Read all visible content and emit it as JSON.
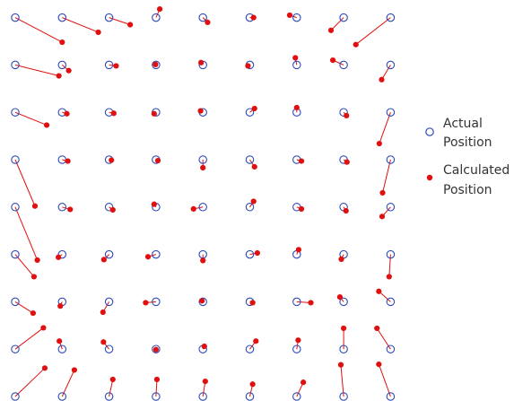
{
  "colors": {
    "actual": "#2f49b8",
    "calculated": "#e01010",
    "error_line": "#e01010"
  },
  "legend": {
    "actual": [
      "Actual",
      "Position"
    ],
    "calculated": [
      "Calculated",
      "Position"
    ]
  },
  "chart_data": {
    "type": "scatter",
    "title": "",
    "xlabel": "",
    "ylabel": "",
    "grid": false,
    "axes_visible": false,
    "legend_position": "right",
    "xlim": [
      -0.3,
      8.3
    ],
    "ylim": [
      -0.3,
      8.3
    ],
    "series": [
      {
        "name": "Actual Position",
        "marker": "open-circle",
        "rows": [
          {
            "y": 8,
            "x": [
              0,
              1,
              2,
              3,
              4,
              5,
              6,
              7,
              8
            ]
          },
          {
            "y": 7,
            "x": [
              0,
              1,
              2,
              3,
              4,
              5,
              6,
              7,
              8
            ]
          },
          {
            "y": 6,
            "x": [
              0,
              1,
              2,
              3,
              4,
              5,
              6,
              7,
              8
            ]
          },
          {
            "y": 5,
            "x": [
              0,
              1,
              2,
              3,
              4,
              5,
              6,
              7,
              8
            ]
          },
          {
            "y": 4,
            "x": [
              0,
              1,
              2,
              3,
              4,
              5,
              6,
              7,
              8
            ]
          },
          {
            "y": 3,
            "x": [
              0,
              1,
              2,
              3,
              4,
              5,
              6,
              7,
              8
            ]
          },
          {
            "y": 2,
            "x": [
              0,
              1,
              2,
              3,
              4,
              5,
              6,
              7,
              8
            ]
          },
          {
            "y": 1,
            "x": [
              0,
              1,
              2,
              3,
              4,
              5,
              6,
              7,
              8
            ]
          },
          {
            "y": 0,
            "x": [
              0,
              1,
              2,
              3,
              4,
              5,
              6,
              7,
              8
            ]
          }
        ]
      },
      {
        "name": "Calculated Position",
        "marker": "filled-dot",
        "points": [
          [
            [
              1.0,
              7.48
            ],
            [
              1.77,
              7.69
            ],
            [
              2.45,
              7.85
            ],
            [
              3.08,
              8.18
            ],
            [
              4.1,
              7.9
            ],
            [
              5.08,
              8.0
            ],
            [
              5.85,
              8.05
            ],
            [
              6.73,
              7.73
            ],
            [
              7.26,
              7.43
            ]
          ],
          [
            [
              0.93,
              6.77
            ],
            [
              1.14,
              6.88
            ],
            [
              2.15,
              6.98
            ],
            [
              2.99,
              7.01
            ],
            [
              3.96,
              7.05
            ],
            [
              4.96,
              6.98
            ],
            [
              5.97,
              7.15
            ],
            [
              6.77,
              7.1
            ],
            [
              7.81,
              6.69
            ]
          ],
          [
            [
              0.67,
              5.73
            ],
            [
              1.1,
              5.97
            ],
            [
              2.1,
              5.98
            ],
            [
              2.96,
              5.97
            ],
            [
              3.95,
              6.03
            ],
            [
              5.1,
              6.08
            ],
            [
              6.0,
              6.1
            ],
            [
              7.06,
              5.93
            ],
            [
              7.76,
              5.34
            ]
          ],
          [
            [
              0.42,
              4.02
            ],
            [
              1.12,
              4.97
            ],
            [
              2.05,
              4.99
            ],
            [
              3.04,
              4.98
            ],
            [
              4.0,
              4.83
            ],
            [
              5.1,
              4.85
            ],
            [
              6.1,
              4.97
            ],
            [
              7.07,
              4.95
            ],
            [
              7.83,
              4.3
            ]
          ],
          [
            [
              0.47,
              2.88
            ],
            [
              1.17,
              3.95
            ],
            [
              2.08,
              3.94
            ],
            [
              2.96,
              4.06
            ],
            [
              3.8,
              3.96
            ],
            [
              5.08,
              4.12
            ],
            [
              6.1,
              3.96
            ],
            [
              7.05,
              3.92
            ],
            [
              7.82,
              3.8
            ]
          ],
          [
            [
              0.4,
              2.53
            ],
            [
              0.92,
              2.94
            ],
            [
              1.89,
              2.89
            ],
            [
              2.83,
              2.95
            ],
            [
              4.0,
              2.87
            ],
            [
              5.16,
              3.03
            ],
            [
              6.04,
              3.1
            ],
            [
              6.95,
              2.9
            ],
            [
              7.97,
              2.53
            ]
          ],
          [
            [
              0.38,
              1.76
            ],
            [
              0.96,
              1.91
            ],
            [
              1.87,
              1.78
            ],
            [
              2.78,
              1.98
            ],
            [
              3.98,
              2.02
            ],
            [
              5.06,
              1.98
            ],
            [
              6.3,
              1.98
            ],
            [
              6.92,
              2.1
            ],
            [
              7.75,
              2.22
            ]
          ],
          [
            [
              0.6,
              1.45
            ],
            [
              0.94,
              1.17
            ],
            [
              1.88,
              1.15
            ],
            [
              3.0,
              0.99
            ],
            [
              4.03,
              1.06
            ],
            [
              5.13,
              1.17
            ],
            [
              6.03,
              1.19
            ],
            [
              7.0,
              1.44
            ],
            [
              7.71,
              1.44
            ]
          ],
          [
            [
              0.63,
              0.6
            ],
            [
              1.26,
              0.56
            ],
            [
              2.08,
              0.36
            ],
            [
              3.02,
              0.36
            ],
            [
              4.05,
              0.32
            ],
            [
              5.06,
              0.26
            ],
            [
              6.14,
              0.3
            ],
            [
              6.94,
              0.67
            ],
            [
              7.75,
              0.68
            ]
          ]
        ]
      }
    ]
  }
}
